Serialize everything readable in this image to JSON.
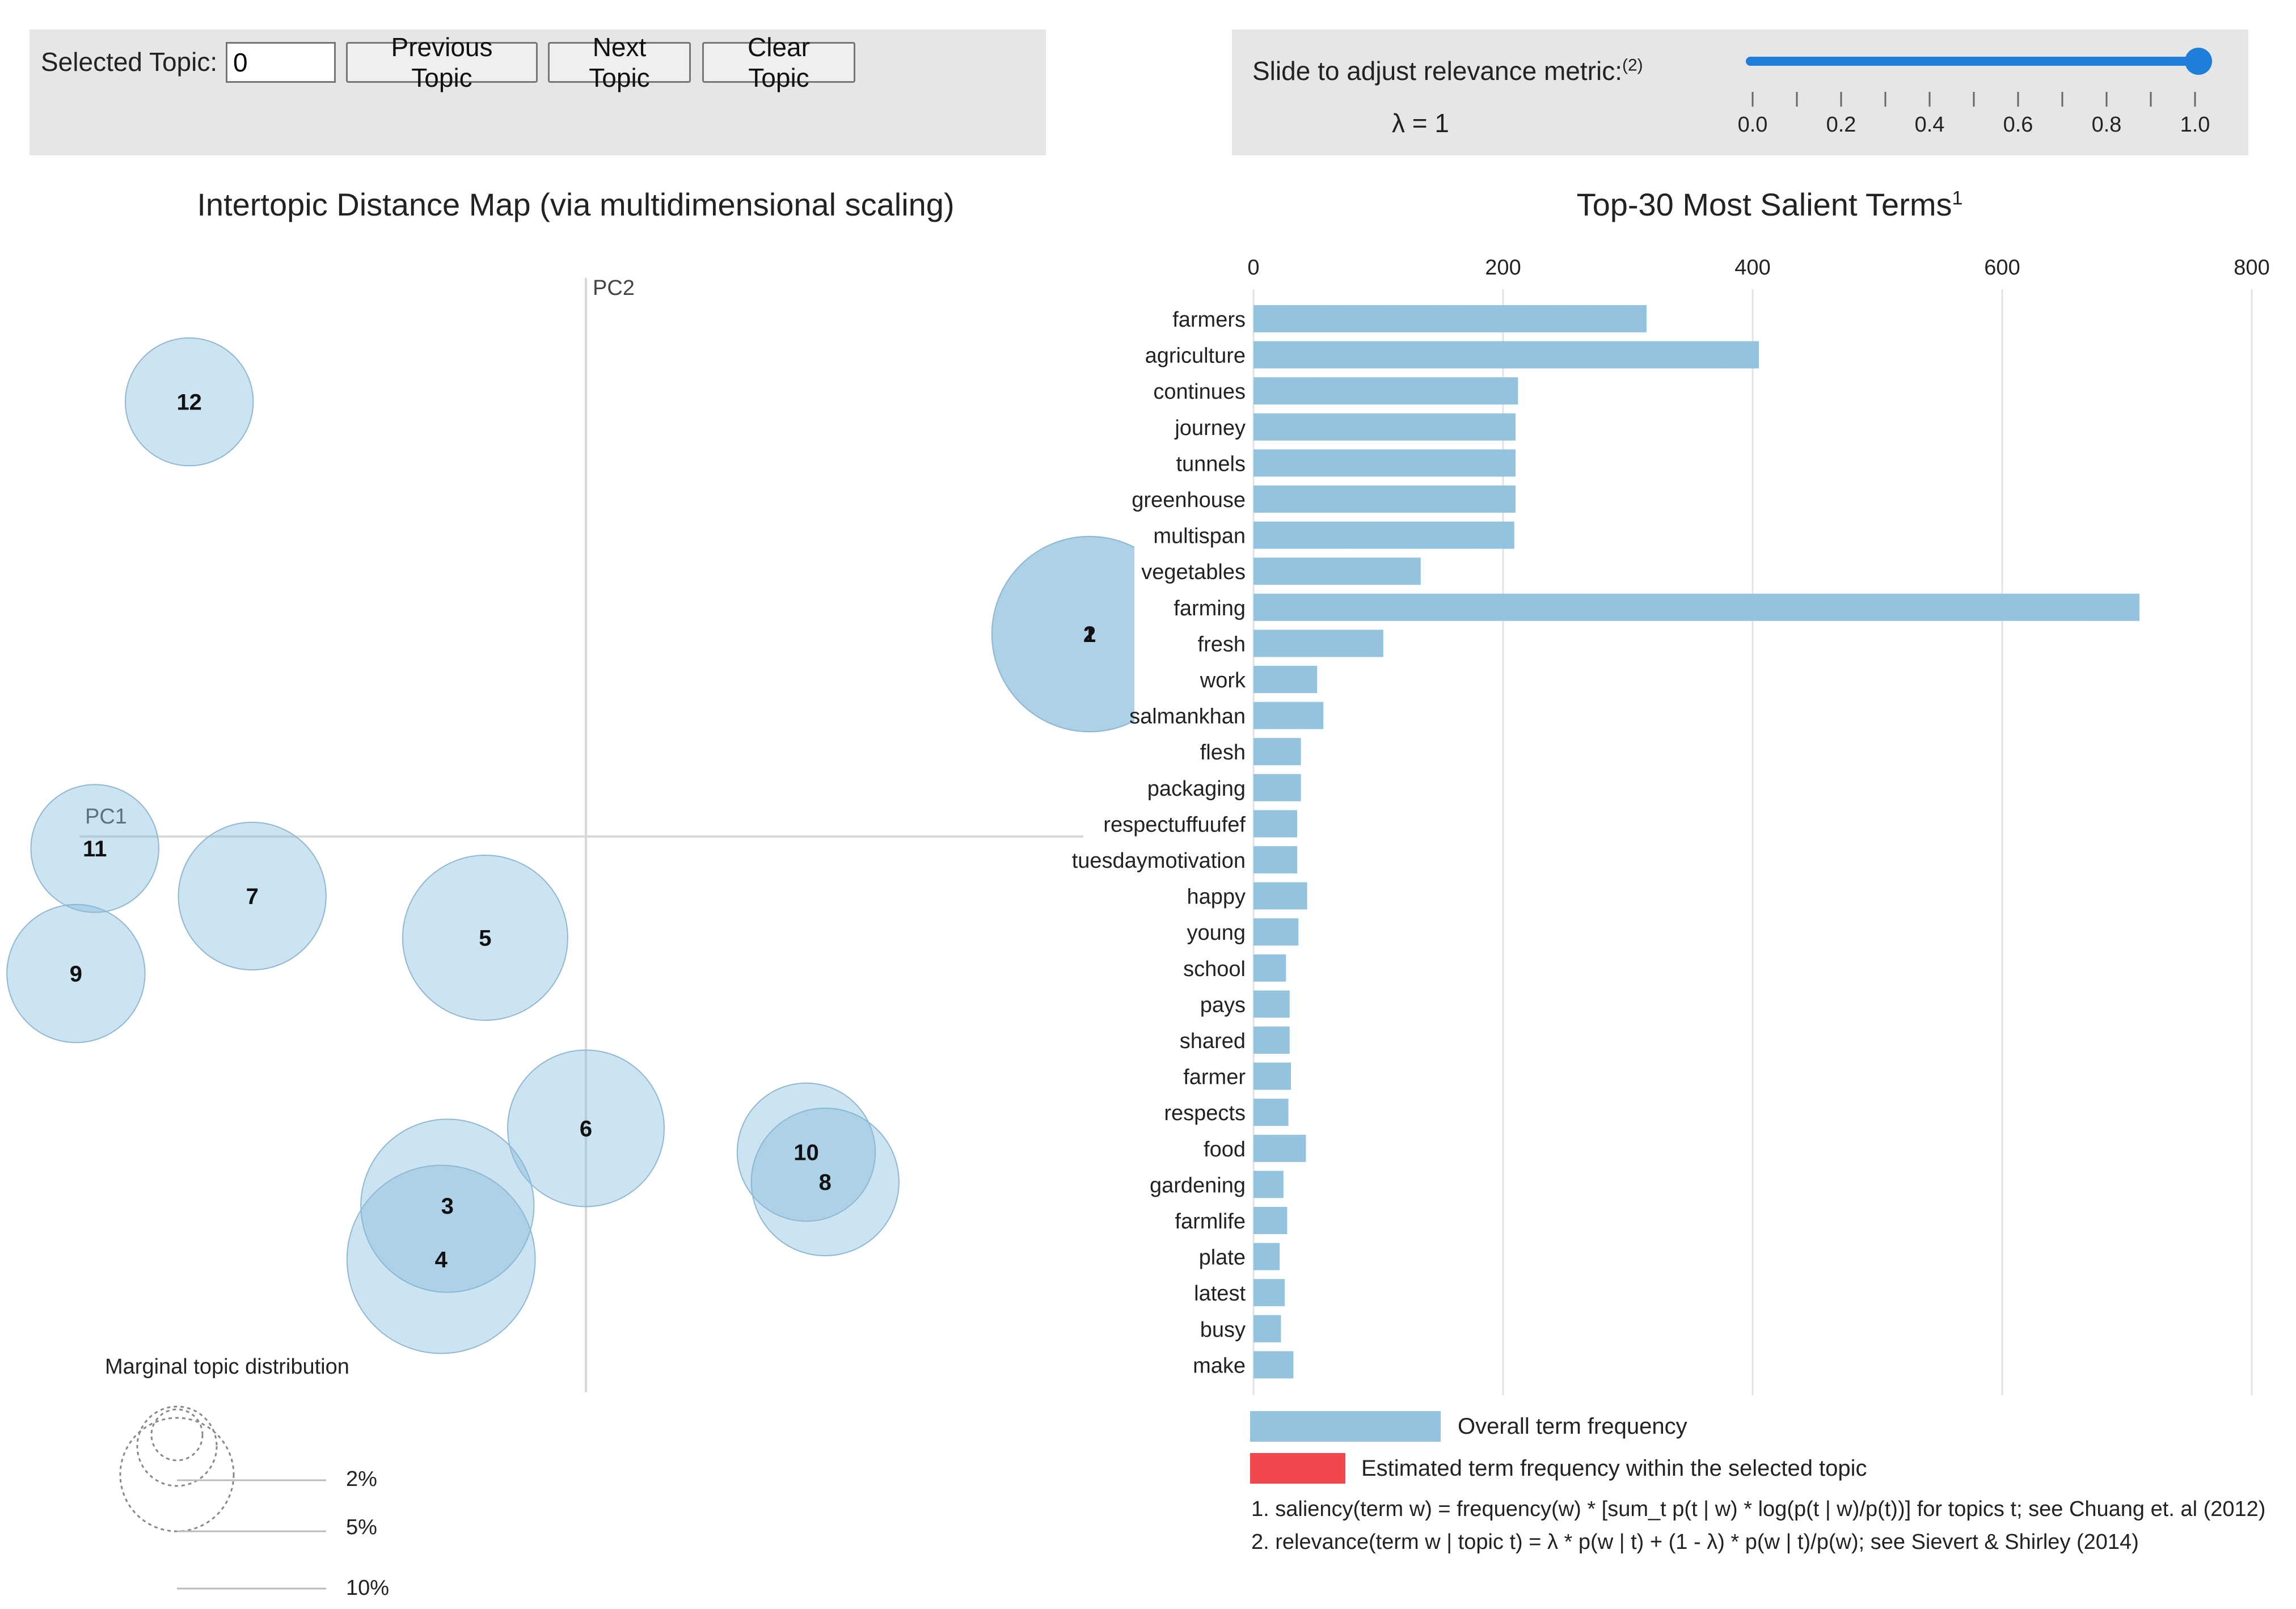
{
  "controls": {
    "selected_topic_label": "Selected Topic:",
    "selected_topic_value": "0",
    "prev_label": "Previous Topic",
    "next_label": "Next Topic",
    "clear_label": "Clear Topic"
  },
  "relevance": {
    "label": "Slide to adjust relevance metric:",
    "footnote_mark": "(2)",
    "lambda_text": "λ = 1",
    "value": 1.0,
    "min": 0.0,
    "max": 1.0,
    "ticks": [
      "0.0",
      "0.2",
      "0.4",
      "0.6",
      "0.8",
      "1.0"
    ]
  },
  "colors": {
    "accent": "#1e7ed8",
    "bubble": "#7fb8dc",
    "bar": "#93c3df",
    "topic_bar": "#f0484d",
    "panel": "#e6e6e6"
  },
  "intertopic_map": {
    "title": "Intertopic Distance Map (via multidimensional scaling)",
    "pc1_label": "PC1",
    "pc2_label": "PC2",
    "legend": {
      "title": "Marginal topic distribution",
      "levels": [
        "2%",
        "5%",
        "10%"
      ]
    }
  },
  "chart_data": [
    {
      "type": "scatter",
      "title": "Intertopic Distance Map (via multidimensional scaling)",
      "xlabel": "PC1",
      "ylabel": "PC2",
      "xlim": [
        -1,
        1
      ],
      "ylim": [
        -1,
        1
      ],
      "points": [
        {
          "topic": "1",
          "x": 0.8,
          "y": 0.34,
          "size": 14
        },
        {
          "topic": "2",
          "x": 0.8,
          "y": 0.34,
          "size": 14
        },
        {
          "topic": "3",
          "x": -0.22,
          "y": -0.62,
          "size": 11
        },
        {
          "topic": "4",
          "x": -0.23,
          "y": -0.71,
          "size": 13
        },
        {
          "topic": "5",
          "x": -0.16,
          "y": -0.17,
          "size": 10
        },
        {
          "topic": "6",
          "x": 0.0,
          "y": -0.49,
          "size": 9
        },
        {
          "topic": "7",
          "x": -0.53,
          "y": -0.1,
          "size": 8
        },
        {
          "topic": "8",
          "x": 0.38,
          "y": -0.58,
          "size": 8
        },
        {
          "topic": "9",
          "x": -0.81,
          "y": -0.23,
          "size": 7
        },
        {
          "topic": "10",
          "x": 0.35,
          "y": -0.53,
          "size": 7
        },
        {
          "topic": "11",
          "x": -0.78,
          "y": -0.02,
          "size": 6
        },
        {
          "topic": "12",
          "x": -0.63,
          "y": 0.73,
          "size": 6
        }
      ]
    },
    {
      "type": "bar",
      "orientation": "horizontal",
      "title": "Top-30 Most Salient Terms",
      "title_footnote": "1",
      "xlim": [
        0,
        800
      ],
      "xticks": [
        "0",
        "200",
        "400",
        "600",
        "800"
      ],
      "categories": [
        "farmers",
        "agriculture",
        "continues",
        "journey",
        "tunnels",
        "greenhouse",
        "multispan",
        "vegetables",
        "farming",
        "fresh",
        "work",
        "salmankhan",
        "flesh",
        "packaging",
        "respectuffuufef",
        "tuesdaymotivation",
        "happy",
        "young",
        "school",
        "pays",
        "shared",
        "farmer",
        "respects",
        "food",
        "gardening",
        "farmlife",
        "plate",
        "latest",
        "busy",
        "make"
      ],
      "values": [
        315,
        405,
        212,
        210,
        210,
        210,
        209,
        134,
        710,
        104,
        51,
        56,
        38,
        38,
        35,
        35,
        43,
        36,
        26,
        29,
        29,
        30,
        28,
        42,
        24,
        27,
        21,
        25,
        22,
        32
      ],
      "topic_values": [],
      "legend": [
        {
          "label": "Overall term frequency",
          "color": "#93c3df"
        },
        {
          "label": "Estimated term frequency within the selected topic",
          "color": "#f0484d"
        }
      ]
    }
  ],
  "footnotes": [
    "1. saliency(term w) = frequency(w) * [sum_t p(t | w) * log(p(t | w)/p(t))] for topics t; see Chuang et. al (2012)",
    "2. relevance(term w | topic t) = λ * p(w | t) + (1 - λ) * p(w | t)/p(w); see Sievert & Shirley (2014)"
  ]
}
